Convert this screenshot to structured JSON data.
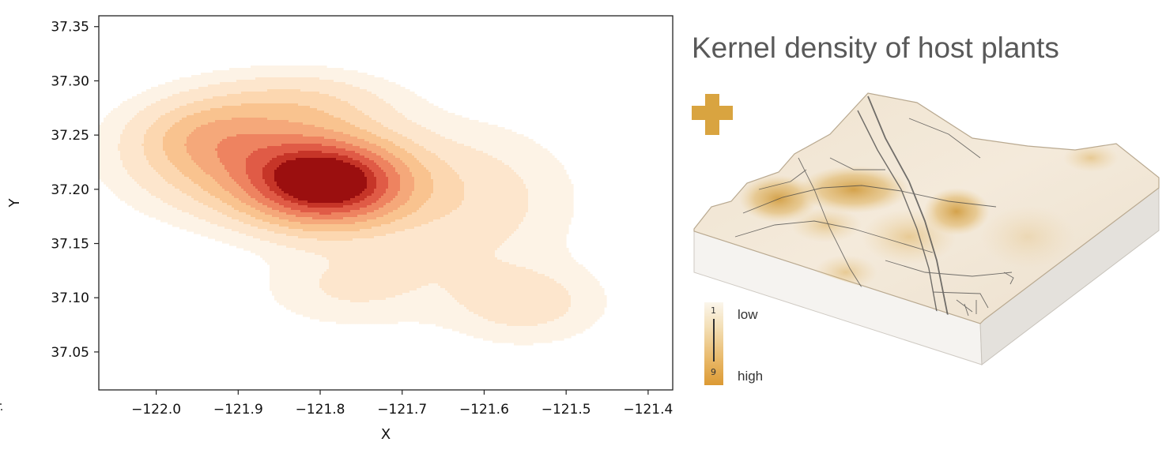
{
  "chart_data": [
    {
      "type": "contour",
      "title": "",
      "xlabel": "X",
      "ylabel": "Y",
      "xlim": [
        -122.07,
        -121.37
      ],
      "ylim": [
        37.015,
        37.36
      ],
      "x_ticks": [
        "−122.0",
        "−121.9",
        "−121.8",
        "−121.7",
        "−121.6",
        "−121.5",
        "−121.4"
      ],
      "x_tick_values": [
        -122.0,
        -121.9,
        -121.8,
        -121.7,
        -121.6,
        -121.5,
        -121.4
      ],
      "y_ticks": [
        "37.05",
        "37.10",
        "37.15",
        "37.20",
        "37.25",
        "37.30",
        "37.35"
      ],
      "y_tick_values": [
        37.05,
        37.1,
        37.15,
        37.2,
        37.25,
        37.3,
        37.35
      ],
      "grid": false,
      "colormap": [
        "#fdf3e6",
        "#fde6cd",
        "#fcd7b0",
        "#f9c38f",
        "#f5a87a",
        "#ee8360",
        "#e05b46",
        "#c63528",
        "#9b0f0f"
      ],
      "density_components": [
        {
          "x": -121.79,
          "y": 37.205,
          "sx": 0.065,
          "sy": 0.026,
          "weight": 1.0
        },
        {
          "x": -121.88,
          "y": 37.23,
          "sx": 0.095,
          "sy": 0.035,
          "weight": 0.4
        },
        {
          "x": -121.94,
          "y": 37.25,
          "sx": 0.055,
          "sy": 0.022,
          "weight": 0.18
        },
        {
          "x": -121.82,
          "y": 37.28,
          "sx": 0.075,
          "sy": 0.02,
          "weight": 0.14
        },
        {
          "x": -121.62,
          "y": 37.19,
          "sx": 0.085,
          "sy": 0.045,
          "weight": 0.16
        },
        {
          "x": -121.76,
          "y": 37.11,
          "sx": 0.075,
          "sy": 0.025,
          "weight": 0.12
        },
        {
          "x": -121.55,
          "y": 37.095,
          "sx": 0.065,
          "sy": 0.025,
          "weight": 0.15
        }
      ]
    }
  ],
  "map_panel": {
    "title": "Kernel density of host plants",
    "legend": {
      "min_value": "1",
      "max_value": "9",
      "low_label": "low",
      "high_label": "high",
      "colors": [
        "#fbf6ec",
        "#f3dfb6",
        "#e8b766",
        "#dc9a34"
      ]
    },
    "plus_icon": "plus-icon",
    "accent_color": "#d9a440"
  }
}
